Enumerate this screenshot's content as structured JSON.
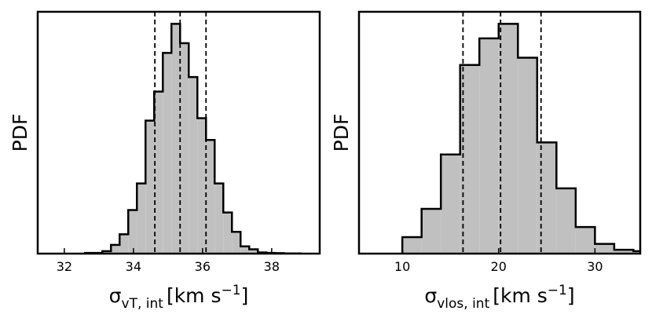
{
  "chart_data": [
    {
      "type": "histogram",
      "ylabel": "PDF",
      "xlabel": {
        "base": "σ",
        "sub": "vT, int",
        "unit": "[km s",
        "sup": "−1",
        "close": "]"
      },
      "bins": [
        32.6,
        32.85,
        33.1,
        33.35,
        33.6,
        33.85,
        34.1,
        34.35,
        34.6,
        34.85,
        35.1,
        35.35,
        35.6,
        35.85,
        36.1,
        36.35,
        36.6,
        36.85,
        37.1,
        37.35,
        37.6,
        37.85,
        38.1,
        38.35,
        38.6,
        38.85
      ],
      "values": [
        0.003,
        0.003,
        0.01,
        0.036,
        0.08,
        0.18,
        0.29,
        0.55,
        0.67,
        0.83,
        0.95,
        0.87,
        0.73,
        0.56,
        0.47,
        0.29,
        0.17,
        0.09,
        0.03,
        0.018,
        0.005,
        0.003,
        0.002,
        0.001,
        0.001
      ],
      "color": "#c0c0c0",
      "xlim": [
        31.23,
        39.39
      ],
      "ylim": [
        0,
        1
      ],
      "xticks": [
        32,
        34,
        36,
        38
      ],
      "vlines": [
        34.62,
        35.35,
        36.1
      ]
    },
    {
      "type": "histogram",
      "ylabel": "PDF",
      "xlabel": {
        "base": "σ",
        "sub": "vlos, int",
        "unit": "[km s",
        "sup": "−1",
        "close": "]"
      },
      "bins": [
        10,
        12,
        14,
        16,
        18,
        20,
        22,
        24,
        26,
        28,
        30,
        32,
        34,
        36
      ],
      "values": [
        0.068,
        0.185,
        0.41,
        0.78,
        0.89,
        0.95,
        0.81,
        0.46,
        0.27,
        0.11,
        0.04,
        0.016,
        0.01
      ],
      "color": "#c0c0c0",
      "xlim": [
        5.5,
        34.7
      ],
      "ylim": [
        0,
        1
      ],
      "xticks": [
        10,
        20,
        30
      ],
      "vlines": [
        16.3,
        20.2,
        24.4
      ]
    }
  ]
}
